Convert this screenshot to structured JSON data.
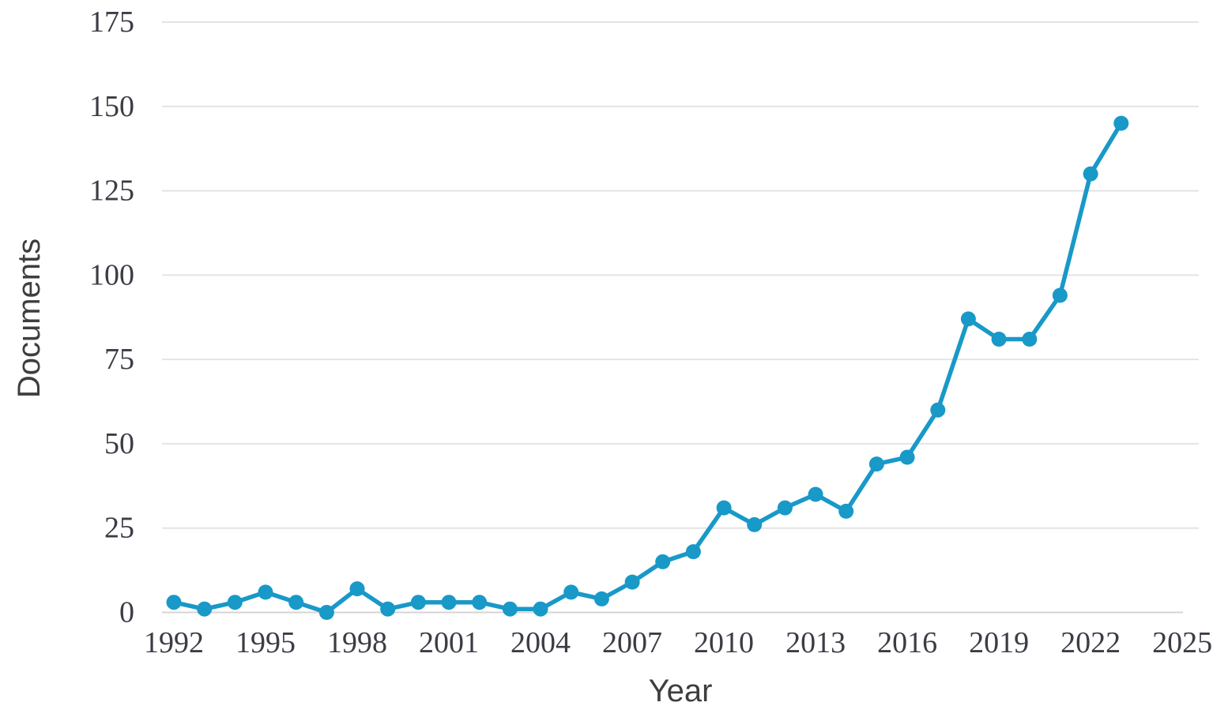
{
  "chart_data": {
    "type": "line",
    "title": "",
    "xlabel": "Year",
    "ylabel": "Documents",
    "x": [
      1992,
      1993,
      1994,
      1995,
      1996,
      1997,
      1998,
      1999,
      2000,
      2001,
      2002,
      2003,
      2004,
      2005,
      2006,
      2007,
      2008,
      2009,
      2010,
      2011,
      2012,
      2013,
      2014,
      2015,
      2016,
      2017,
      2018,
      2019,
      2020,
      2021,
      2022,
      2023
    ],
    "values": [
      3,
      1,
      3,
      6,
      3,
      0,
      7,
      1,
      3,
      3,
      3,
      1,
      1,
      6,
      4,
      9,
      15,
      18,
      31,
      26,
      31,
      35,
      30,
      44,
      46,
      60,
      87,
      81,
      81,
      94,
      130,
      145
    ],
    "series": [
      {
        "name": "Documents",
        "values": [
          3,
          1,
          3,
          6,
          3,
          0,
          7,
          1,
          3,
          3,
          3,
          1,
          1,
          6,
          4,
          9,
          15,
          18,
          31,
          26,
          31,
          35,
          30,
          44,
          46,
          60,
          87,
          81,
          81,
          94,
          130,
          145
        ]
      }
    ],
    "xlim": [
      1991.5,
      2025.5
    ],
    "ylim": [
      0,
      175
    ],
    "x_ticks": [
      1992,
      1995,
      1998,
      2001,
      2004,
      2007,
      2010,
      2013,
      2016,
      2019,
      2022,
      2025
    ],
    "y_ticks": [
      0,
      25,
      50,
      75,
      100,
      125,
      150,
      175
    ],
    "grid": true,
    "legend": "none",
    "marker": "circle",
    "colors": {
      "series": "#1899c8",
      "gridline": "#e4e4e4",
      "baseline": "#d4d4d4",
      "tick_text": "#3c3c46",
      "title_text": "#3e3e3e",
      "background": "#ffffff"
    }
  }
}
